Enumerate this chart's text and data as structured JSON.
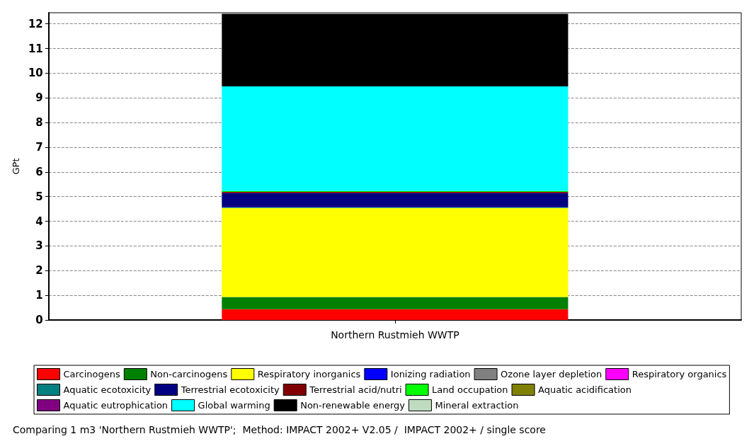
{
  "chart_data": {
    "type": "bar",
    "stacked": true,
    "ylabel": "GPt",
    "categories": [
      "Northern Rustmieh WWTP"
    ],
    "series": [
      {
        "name": "Carcinogens",
        "color": "#ff0000",
        "values": [
          0.44
        ]
      },
      {
        "name": "Non-carcinogens",
        "color": "#008000",
        "values": [
          0.49
        ]
      },
      {
        "name": "Respiratory inorganics",
        "color": "#ffff00",
        "values": [
          3.61
        ]
      },
      {
        "name": "Ionizing radiation",
        "color": "#0000ff",
        "values": [
          null
        ]
      },
      {
        "name": "Ozone layer depletion",
        "color": "#808080",
        "values": [
          0
        ]
      },
      {
        "name": "Respiratory organics",
        "color": "#ff00ff",
        "values": [
          0
        ]
      },
      {
        "name": "Aquatic ecotoxicity",
        "color": "#008080",
        "values": [
          0.03
        ]
      },
      {
        "name": "Terrestrial ecotoxicity",
        "color": "#000080",
        "values": [
          0.57
        ]
      },
      {
        "name": "Terrestrial acid/nutri",
        "color": "#800000",
        "values": [
          0.05
        ]
      },
      {
        "name": "Land occupation",
        "color": "#00ff00",
        "values": [
          0.04
        ]
      },
      {
        "name": "Aquatic acidification",
        "color": "#808000",
        "values": [
          0
        ]
      },
      {
        "name": "Aquatic eutrophication",
        "color": "#800080",
        "values": [
          null
        ]
      },
      {
        "name": "Global warming",
        "color": "#00ffff",
        "values": [
          4.24
        ]
      },
      {
        "name": "Non-renewable energy",
        "color": "#000000",
        "values": [
          2.94
        ]
      },
      {
        "name": "Mineral extraction",
        "color": "#c0dcc0",
        "values": [
          0
        ]
      }
    ],
    "ylim": [
      0,
      12.45
    ],
    "yticks": [
      0,
      1,
      2,
      3,
      4,
      5,
      6,
      7,
      8,
      9,
      10,
      11,
      12
    ],
    "grid": "y",
    "legend": "bottom",
    "annotations": [
      "Comparing 1 m3 'Northern Rustmieh WWTP';  Method: IMPACT 2002+ V2.05 /  IMPACT 2002+ / single score"
    ]
  }
}
